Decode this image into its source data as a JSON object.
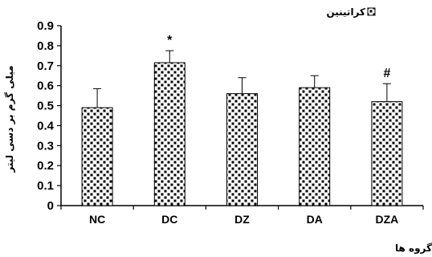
{
  "chart_data": {
    "type": "bar",
    "categories": [
      "NC",
      "DC",
      "DZ",
      "DA",
      "DZA"
    ],
    "values": [
      0.49,
      0.715,
      0.56,
      0.59,
      0.52
    ],
    "errors": [
      0.095,
      0.06,
      0.08,
      0.06,
      0.09
    ],
    "annotations": [
      "",
      "*",
      "",
      "",
      "#"
    ],
    "ylim": [
      0,
      0.9
    ],
    "yticks": [
      "0",
      "0.1",
      "0.2",
      "0.3",
      "0.4",
      "0.5",
      "0.6",
      "0.7",
      "0.8",
      "0.9"
    ],
    "ylabel": "میلی گرم بر دسی لیتر",
    "xlabel": "گروه ها",
    "legend": "کراتینین",
    "legend_position": "top-right",
    "grid": false,
    "bar_pattern": "black-dots-on-white"
  }
}
